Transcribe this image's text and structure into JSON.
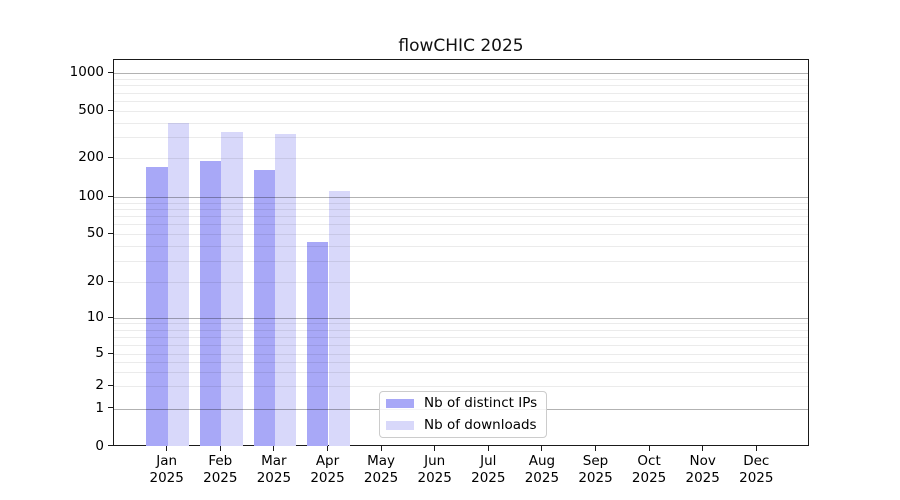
{
  "chart_data": {
    "type": "bar",
    "title": "flowCHIC 2025",
    "xlabel": "",
    "ylabel": "",
    "categories": [
      "Jan 2025",
      "Feb 2025",
      "Mar 2025",
      "Apr 2025",
      "May 2025",
      "Jun 2025",
      "Jul 2025",
      "Aug 2025",
      "Sep 2025",
      "Oct 2025",
      "Nov 2025",
      "Dec 2025"
    ],
    "series": [
      {
        "name": "Nb of distinct IPs",
        "color": "#a8a8f7",
        "values": [
          170,
          190,
          162,
          43,
          0,
          0,
          0,
          0,
          0,
          0,
          0,
          0
        ]
      },
      {
        "name": "Nb of downloads",
        "color": "#d8d8fa",
        "values": [
          400,
          335,
          323,
          111,
          0,
          0,
          0,
          0,
          0,
          0,
          0,
          0
        ]
      }
    ],
    "yscale": "symlog",
    "yticks": [
      0,
      1,
      2,
      5,
      10,
      20,
      50,
      100,
      200,
      500,
      1000
    ],
    "ylim": [
      0,
      1280
    ],
    "grid": "horizontal, major and minor, drawn over bars",
    "legend_position": "lower center",
    "colors": {
      "major_grid": "rgba(0,0,0,0.30)",
      "minor_grid": "rgba(0,0,0,0.08)",
      "axis": "#1a1a1a",
      "background": "#ffffff"
    }
  }
}
